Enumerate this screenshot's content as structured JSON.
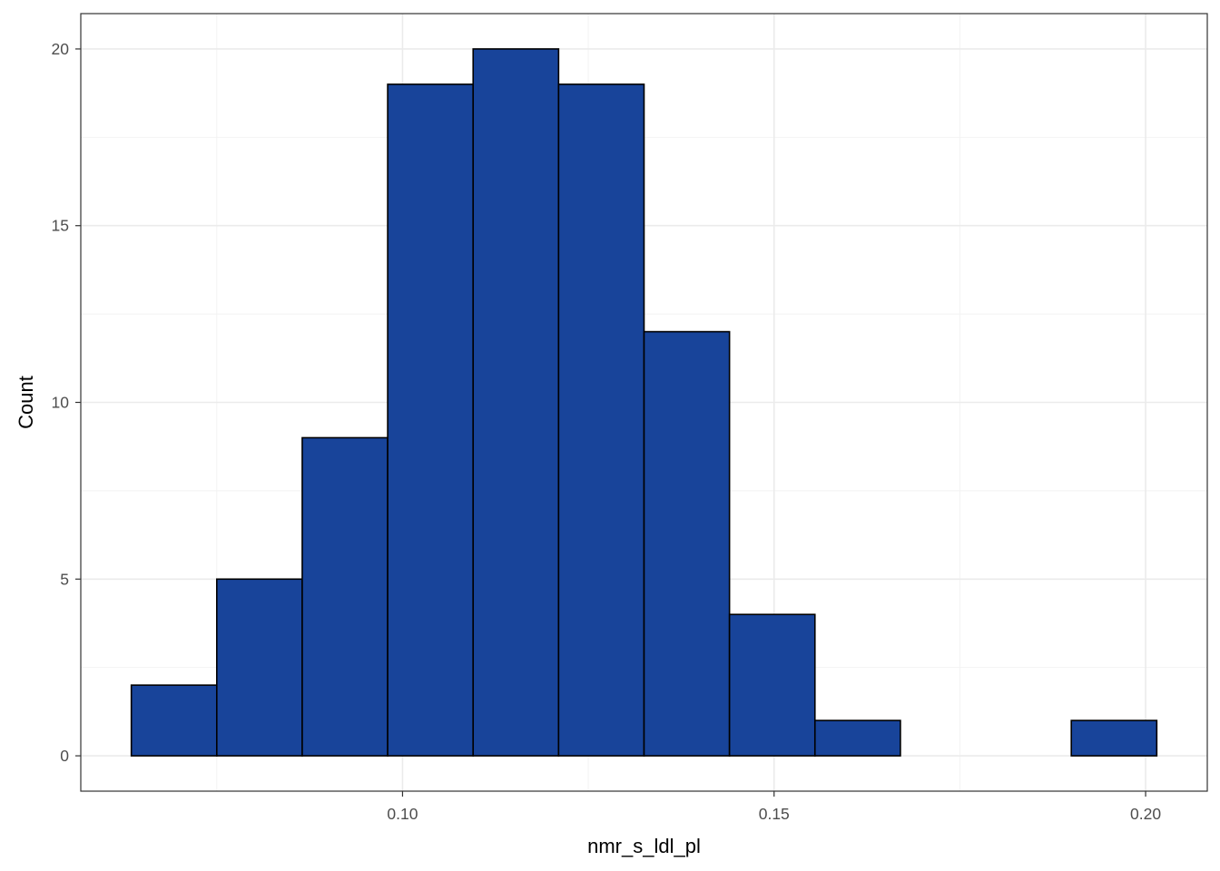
{
  "chart_data": {
    "type": "bar",
    "subtype": "histogram",
    "xlabel": "nmr_s_ldl_pl",
    "ylabel": "Count",
    "bin_edges": [
      0.0635,
      0.075,
      0.0865,
      0.098,
      0.1095,
      0.121,
      0.1325,
      0.144,
      0.1555,
      0.167,
      0.1785,
      0.19,
      0.2015
    ],
    "counts": [
      2,
      5,
      9,
      19,
      20,
      19,
      12,
      4,
      1,
      0,
      0,
      1
    ],
    "xlim": [
      0.0567,
      0.2083
    ],
    "ylim": [
      -1,
      21
    ],
    "x_ticks": [
      0.1,
      0.15,
      0.2
    ],
    "x_tick_labels": [
      "0.10",
      "0.15",
      "0.20"
    ],
    "y_ticks": [
      0,
      5,
      10,
      15,
      20
    ],
    "y_tick_labels": [
      "0",
      "5",
      "10",
      "15",
      "20"
    ],
    "bar_fill": "#18449A",
    "bar_stroke": "#000000",
    "grid": true,
    "theme": "bw"
  }
}
